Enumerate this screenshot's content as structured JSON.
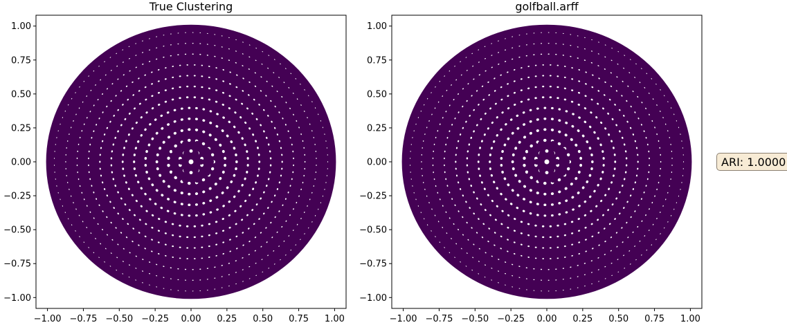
{
  "chart_data": [
    {
      "type": "scatter",
      "title": "True Clustering",
      "xlabel": "",
      "ylabel": "",
      "xlim": [
        -1.08,
        1.08
      ],
      "ylim": [
        -1.08,
        1.08
      ],
      "xticks": [
        "−1.00",
        "−0.75",
        "−0.50",
        "−0.25",
        "0.00",
        "0.25",
        "0.50",
        "0.75",
        "1.00"
      ],
      "yticks": [
        "1.00",
        "0.75",
        "0.50",
        "0.25",
        "0.00",
        "−0.25",
        "−0.50",
        "−0.75",
        "−1.00"
      ],
      "grid": false,
      "series": [
        {
          "color": "#440154",
          "points": "golf ball points projected onto x-y plane, single cluster (radius 1.0)"
        }
      ]
    },
    {
      "type": "scatter",
      "title": "golfball.arff",
      "xlabel": "",
      "ylabel": "",
      "xlim": [
        -1.08,
        1.08
      ],
      "ylim": [
        -1.08,
        1.08
      ],
      "xticks": [
        "−1.00",
        "−0.75",
        "−0.50",
        "−0.25",
        "0.00",
        "0.25",
        "0.50",
        "0.75",
        "1.00"
      ],
      "yticks": [
        "1.00",
        "0.75",
        "0.50",
        "0.25",
        "0.00",
        "−0.25",
        "−0.50",
        "−0.75",
        "−1.00"
      ],
      "grid": false,
      "series": [
        {
          "color": "#440154",
          "points": "golf ball points projected onto x-y plane, single cluster (radius 1.0)"
        }
      ]
    }
  ],
  "annotation": {
    "text": "ARI: 1.0000"
  }
}
